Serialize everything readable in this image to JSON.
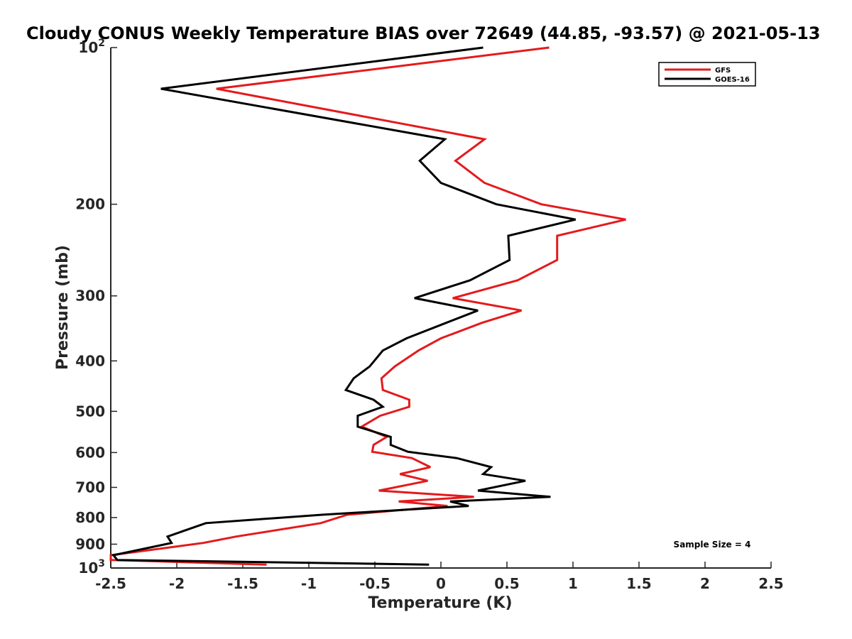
{
  "chart_data": {
    "type": "line",
    "title": "Cloudy CONUS Weekly Temperature BIAS over 72649 (44.85, -93.57) @ 2021-05-13",
    "xlabel": "Temperature (K)",
    "ylabel": "Pressure (mb)",
    "xlim": [
      -2.5,
      2.5
    ],
    "ylim": [
      100,
      1000
    ],
    "yscale": "log",
    "yreversed": true,
    "x_ticks": [
      -2.5,
      -2,
      -1.5,
      -1,
      -0.5,
      0,
      0.5,
      1,
      1.5,
      2,
      2.5
    ],
    "x_tick_labels": [
      "-2.5",
      "-2",
      "-1.5",
      "-1",
      "-0.5",
      "0",
      "0.5",
      "1",
      "1.5",
      "2",
      "2.5"
    ],
    "y_ticks": [
      {
        "value": 100,
        "base": "10",
        "exp": "2"
      },
      {
        "value": 200,
        "label": "200"
      },
      {
        "value": 300,
        "label": "300"
      },
      {
        "value": 400,
        "label": "400"
      },
      {
        "value": 500,
        "label": "500"
      },
      {
        "value": 600,
        "label": "600"
      },
      {
        "value": 700,
        "label": "700"
      },
      {
        "value": 800,
        "label": "800"
      },
      {
        "value": 900,
        "label": "900"
      },
      {
        "value": 1000,
        "base": "10",
        "exp": "3"
      }
    ],
    "grid": false,
    "legend_position": "top-right",
    "series": [
      {
        "name": "GFS",
        "color": "#e41a1c",
        "points": [
          [
            0.82,
            100
          ],
          [
            -1.7,
            120
          ],
          [
            0.33,
            150
          ],
          [
            0.11,
            165
          ],
          [
            0.33,
            182
          ],
          [
            0.76,
            200
          ],
          [
            1.4,
            214
          ],
          [
            0.88,
            230
          ],
          [
            0.88,
            256
          ],
          [
            0.58,
            280
          ],
          [
            0.09,
            303
          ],
          [
            0.61,
            320
          ],
          [
            0.31,
            338
          ],
          [
            0.0,
            362
          ],
          [
            -0.17,
            382
          ],
          [
            -0.35,
            410
          ],
          [
            -0.45,
            432
          ],
          [
            -0.44,
            455
          ],
          [
            -0.24,
            475
          ],
          [
            -0.24,
            490
          ],
          [
            -0.46,
            510
          ],
          [
            -0.6,
            535
          ],
          [
            -0.41,
            560
          ],
          [
            -0.51,
            580
          ],
          [
            -0.52,
            598
          ],
          [
            -0.22,
            615
          ],
          [
            -0.08,
            640
          ],
          [
            -0.31,
            660
          ],
          [
            -0.1,
            680
          ],
          [
            -0.47,
            710
          ],
          [
            0.25,
            730
          ],
          [
            -0.32,
            745
          ],
          [
            0.05,
            760
          ],
          [
            -0.71,
            790
          ],
          [
            -0.91,
            820
          ],
          [
            -1.55,
            870
          ],
          [
            -1.8,
            895
          ],
          [
            -2.5,
            945
          ],
          [
            -2.5,
            965
          ],
          [
            -1.32,
            985
          ]
        ]
      },
      {
        "name": "GOES-16",
        "color": "#000000",
        "points": [
          [
            0.32,
            100
          ],
          [
            -2.12,
            120
          ],
          [
            0.03,
            150
          ],
          [
            -0.16,
            165
          ],
          [
            0.0,
            182
          ],
          [
            0.42,
            200
          ],
          [
            1.02,
            214
          ],
          [
            0.51,
            230
          ],
          [
            0.52,
            256
          ],
          [
            0.22,
            280
          ],
          [
            -0.2,
            303
          ],
          [
            0.28,
            320
          ],
          [
            0.04,
            338
          ],
          [
            -0.26,
            362
          ],
          [
            -0.44,
            382
          ],
          [
            -0.54,
            410
          ],
          [
            -0.66,
            432
          ],
          [
            -0.72,
            455
          ],
          [
            -0.51,
            475
          ],
          [
            -0.44,
            490
          ],
          [
            -0.63,
            510
          ],
          [
            -0.63,
            535
          ],
          [
            -0.38,
            560
          ],
          [
            -0.38,
            580
          ],
          [
            -0.25,
            598
          ],
          [
            0.12,
            615
          ],
          [
            0.38,
            640
          ],
          [
            0.32,
            660
          ],
          [
            0.64,
            680
          ],
          [
            0.28,
            710
          ],
          [
            0.83,
            730
          ],
          [
            0.07,
            745
          ],
          [
            0.21,
            760
          ],
          [
            -0.9,
            790
          ],
          [
            -1.78,
            820
          ],
          [
            -2.07,
            870
          ],
          [
            -2.04,
            895
          ],
          [
            -2.48,
            945
          ],
          [
            -2.45,
            965
          ],
          [
            -0.09,
            985
          ]
        ]
      }
    ],
    "annotation": "Sample Size = 4"
  }
}
